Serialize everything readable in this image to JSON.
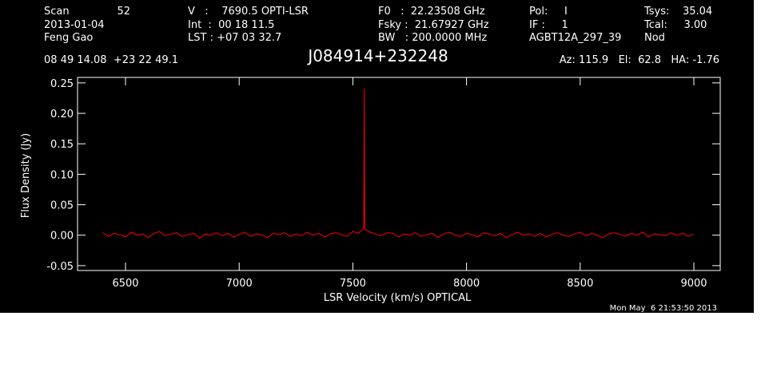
{
  "chart_data": {
    "type": "line",
    "title": "J084914+232248",
    "header": [
      "Scan",
      "52",
      "2013-01-04",
      "Feng Gao",
      "V   :    7690.5 OPTI-LSR",
      "Int  :  00 18 11.5",
      "LST : +07 03 32.7",
      "F0   :  22.23508 GHz",
      "Fsky :  21.67927 GHz",
      "BW   : 200.0000 MHz",
      "Pol:     I",
      "IF :     1",
      "AGBT12A_297_39",
      "Tsys:    35.04",
      "Tcal:     3.00",
      "Nod",
      "08 49 14.08  +23 22 49.1",
      "Az: 115.9   El:  62.8   HA: -1.76"
    ],
    "xlabel": "LSR Velocity (km/s) OPTICAL",
    "ylabel": "Flux Density (Jy)",
    "timestamp": "Mon May  6 21:53:50 2013",
    "color": "#ff0000",
    "x": [
      6400,
      6425,
      6450,
      6475,
      6500,
      6525,
      6550,
      6575,
      6600,
      6625,
      6650,
      6675,
      6700,
      6725,
      6750,
      6775,
      6800,
      6825,
      6850,
      6875,
      6900,
      6925,
      6950,
      6975,
      7000,
      7025,
      7050,
      7075,
      7100,
      7125,
      7150,
      7175,
      7200,
      7225,
      7250,
      7275,
      7300,
      7325,
      7350,
      7375,
      7400,
      7425,
      7450,
      7475,
      7500,
      7525,
      7548,
      7550,
      7552,
      7575,
      7600,
      7625,
      7650,
      7675,
      7700,
      7725,
      7750,
      7775,
      7800,
      7825,
      7850,
      7875,
      7900,
      7925,
      7950,
      7975,
      8000,
      8025,
      8050,
      8075,
      8100,
      8125,
      8150,
      8175,
      8200,
      8225,
      8250,
      8275,
      8300,
      8325,
      8350,
      8375,
      8400,
      8425,
      8450,
      8475,
      8500,
      8525,
      8550,
      8575,
      8600,
      8625,
      8650,
      8675,
      8700,
      8725,
      8750,
      8775,
      8800,
      8825,
      8850,
      8875,
      8900,
      8925,
      8950,
      8975,
      9000
    ],
    "values": [
      0.004,
      -0.002,
      0.003,
      0.001,
      -0.003,
      0.005,
      0.0,
      0.002,
      -0.004,
      0.003,
      0.006,
      -0.001,
      0.002,
      0.004,
      -0.002,
      0.001,
      0.003,
      -0.005,
      0.002,
      0.0,
      0.004,
      -0.001,
      0.003,
      -0.003,
      0.001,
      0.005,
      -0.002,
      0.002,
      0.0,
      -0.004,
      0.003,
      0.001,
      0.004,
      -0.002,
      0.002,
      -0.001,
      0.005,
      0.0,
      0.003,
      -0.003,
      0.002,
      0.004,
      0.001,
      -0.002,
      0.006,
      0.003,
      0.012,
      0.241,
      0.01,
      0.005,
      0.002,
      -0.001,
      0.004,
      0.003,
      -0.003,
      0.002,
      0.0,
      0.004,
      -0.002,
      0.001,
      0.003,
      -0.004,
      0.002,
      0.005,
      0.0,
      -0.002,
      0.003,
      0.001,
      -0.003,
      0.004,
      0.002,
      -0.001,
      0.003,
      -0.004,
      0.001,
      0.005,
      0.0,
      0.002,
      -0.002,
      0.003,
      -0.003,
      0.001,
      0.004,
      0.0,
      -0.002,
      0.002,
      0.005,
      -0.001,
      0.003,
      0.0,
      -0.004,
      0.002,
      0.004,
      0.001,
      -0.002,
      0.003,
      0.0,
      0.005,
      -0.003,
      0.002,
      0.001,
      -0.001,
      0.004,
      0.0,
      0.003,
      -0.002,
      0.002
    ],
    "xlim": [
      6289,
      9116
    ],
    "ylim": [
      -0.058,
      0.259
    ],
    "xticks": [
      6500,
      7000,
      7500,
      8000,
      8500,
      9000
    ],
    "yticks": [
      -0.05,
      {
        "value": 0,
        "label": "0.00"
      },
      0.05,
      {
        "value": 0.1,
        "label": "0.10"
      },
      0.15,
      {
        "value": 0.2,
        "label": "0.20"
      },
      0.25
    ]
  }
}
